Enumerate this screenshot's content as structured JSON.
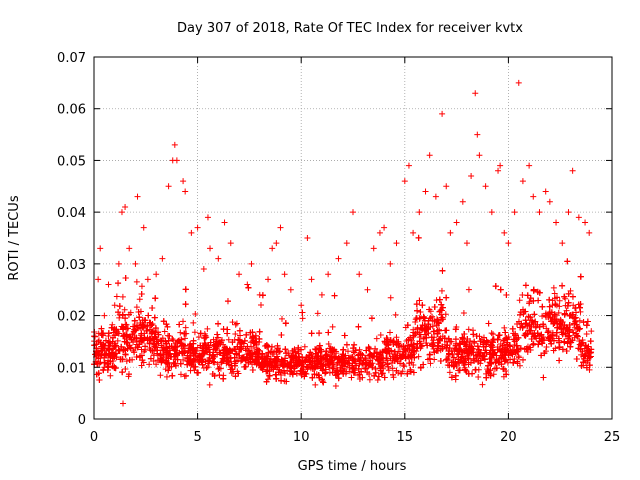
{
  "chart_data": {
    "type": "scatter",
    "title": "Day 307 of 2018, Rate Of TEC Index for receiver kvtx",
    "xlabel": "GPS time / hours",
    "ylabel": "ROTI / TECUs",
    "xlim": [
      0,
      25
    ],
    "ylim": [
      0,
      0.07
    ],
    "x_ticks": [
      "0",
      "5",
      "10",
      "15",
      "20",
      "25"
    ],
    "y_ticks": [
      "0",
      "0.01",
      "0.02",
      "0.03",
      "0.04",
      "0.05",
      "0.06",
      "0.07"
    ],
    "x_tick_values": [
      0,
      5,
      10,
      15,
      20,
      25
    ],
    "y_tick_values": [
      0,
      0.01,
      0.02,
      0.03,
      0.04,
      0.05,
      0.06,
      0.07
    ],
    "grid": true,
    "marker": "+",
    "color": "#ff0000",
    "series": [
      {
        "name": "ROTI",
        "description": "dense point cloud of ROTI samples from 0 to 24 h, bulk between 0.005 and 0.02 TECU/s",
        "points": [
          [
            0.1,
            0.012
          ],
          [
            0.2,
            0.027
          ],
          [
            0.3,
            0.033
          ],
          [
            0.5,
            0.02
          ],
          [
            0.7,
            0.026
          ],
          [
            1.0,
            0.022
          ],
          [
            1.2,
            0.03
          ],
          [
            1.35,
            0.04
          ],
          [
            1.4,
            0.003
          ],
          [
            1.5,
            0.041
          ],
          [
            1.7,
            0.033
          ],
          [
            2.0,
            0.03
          ],
          [
            2.1,
            0.043
          ],
          [
            2.4,
            0.037
          ],
          [
            2.6,
            0.027
          ],
          [
            3.0,
            0.028
          ],
          [
            3.3,
            0.031
          ],
          [
            3.6,
            0.045
          ],
          [
            3.8,
            0.05
          ],
          [
            3.9,
            0.053
          ],
          [
            4.0,
            0.05
          ],
          [
            4.3,
            0.046
          ],
          [
            4.4,
            0.044
          ],
          [
            4.7,
            0.036
          ],
          [
            5.0,
            0.037
          ],
          [
            5.3,
            0.029
          ],
          [
            5.6,
            0.033
          ],
          [
            5.5,
            0.039
          ],
          [
            6.0,
            0.031
          ],
          [
            6.3,
            0.038
          ],
          [
            6.6,
            0.034
          ],
          [
            7.0,
            0.028
          ],
          [
            7.4,
            0.026
          ],
          [
            7.6,
            0.03
          ],
          [
            8.0,
            0.024
          ],
          [
            8.4,
            0.027
          ],
          [
            8.6,
            0.033
          ],
          [
            8.8,
            0.034
          ],
          [
            9.0,
            0.037
          ],
          [
            9.2,
            0.028
          ],
          [
            9.5,
            0.025
          ],
          [
            10.0,
            0.022
          ],
          [
            10.3,
            0.035
          ],
          [
            10.5,
            0.027
          ],
          [
            11.0,
            0.024
          ],
          [
            11.3,
            0.028
          ],
          [
            11.8,
            0.031
          ],
          [
            12.2,
            0.034
          ],
          [
            12.5,
            0.04
          ],
          [
            12.8,
            0.028
          ],
          [
            13.2,
            0.025
          ],
          [
            13.5,
            0.033
          ],
          [
            13.8,
            0.036
          ],
          [
            14.0,
            0.037
          ],
          [
            14.3,
            0.03
          ],
          [
            14.6,
            0.034
          ],
          [
            15.0,
            0.046
          ],
          [
            15.2,
            0.049
          ],
          [
            15.4,
            0.036
          ],
          [
            15.7,
            0.04
          ],
          [
            16.0,
            0.044
          ],
          [
            16.2,
            0.051
          ],
          [
            16.5,
            0.043
          ],
          [
            16.8,
            0.059
          ],
          [
            17.0,
            0.045
          ],
          [
            17.2,
            0.036
          ],
          [
            17.5,
            0.038
          ],
          [
            17.8,
            0.042
          ],
          [
            18.0,
            0.034
          ],
          [
            18.2,
            0.047
          ],
          [
            18.4,
            0.063
          ],
          [
            18.5,
            0.055
          ],
          [
            18.6,
            0.051
          ],
          [
            18.9,
            0.045
          ],
          [
            19.2,
            0.04
          ],
          [
            19.5,
            0.048
          ],
          [
            19.6,
            0.049
          ],
          [
            19.8,
            0.036
          ],
          [
            20.0,
            0.034
          ],
          [
            20.3,
            0.04
          ],
          [
            20.5,
            0.065
          ],
          [
            20.7,
            0.046
          ],
          [
            21.0,
            0.049
          ],
          [
            21.2,
            0.043
          ],
          [
            21.5,
            0.04
          ],
          [
            21.8,
            0.044
          ],
          [
            22.0,
            0.042
          ],
          [
            22.3,
            0.038
          ],
          [
            22.6,
            0.034
          ],
          [
            22.9,
            0.04
          ],
          [
            23.1,
            0.048
          ],
          [
            23.4,
            0.039
          ],
          [
            23.7,
            0.038
          ],
          [
            23.9,
            0.036
          ],
          [
            24.0,
            0.017
          ]
        ]
      }
    ]
  }
}
